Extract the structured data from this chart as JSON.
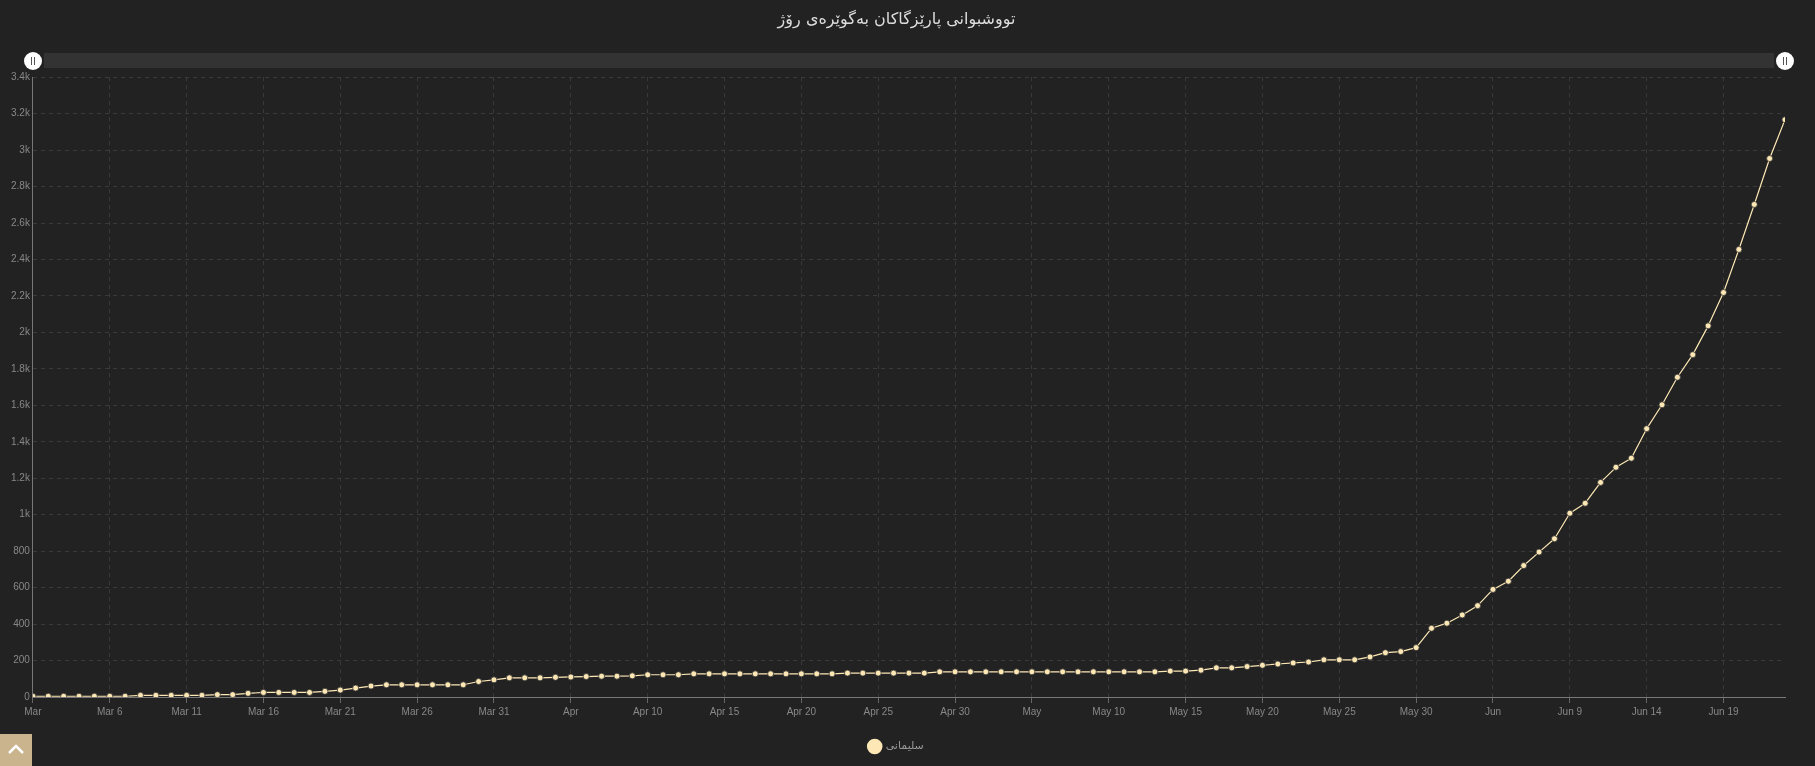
{
  "chart_data": {
    "type": "line",
    "title": "تووشبوانی پارێزگاکان بەگوێرەی رۆژ",
    "x": [
      "--03-01",
      "--03-02",
      "--03-03",
      "--03-04",
      "--03-05",
      "--03-06",
      "--03-07",
      "--03-08",
      "--03-09",
      "--03-10",
      "--03-11",
      "--03-12",
      "--03-13",
      "--03-14",
      "--03-15",
      "--03-16",
      "--03-17",
      "--03-18",
      "--03-19",
      "--03-20",
      "--03-21",
      "--03-22",
      "--03-23",
      "--03-24",
      "--03-25",
      "--03-26",
      "--03-27",
      "--03-28",
      "--03-29",
      "--03-30",
      "--03-31",
      "--04-01",
      "--04-02",
      "--04-03",
      "--04-04",
      "--04-05",
      "--04-06",
      "--04-07",
      "--04-08",
      "--04-09",
      "--04-10",
      "--04-11",
      "--04-12",
      "--04-13",
      "--04-14",
      "--04-15",
      "--04-16",
      "--04-17",
      "--04-18",
      "--04-19",
      "--04-20",
      "--04-21",
      "--04-22",
      "--04-23",
      "--04-24",
      "--04-25",
      "--04-26",
      "--04-27",
      "--04-28",
      "--04-29",
      "--04-30",
      "--05-01",
      "--05-02",
      "--05-03",
      "--05-04",
      "--05-05",
      "--05-06",
      "--05-07",
      "--05-08",
      "--05-09",
      "--05-10",
      "--05-11",
      "--05-12",
      "--05-13",
      "--05-14",
      "--05-15",
      "--05-16",
      "--05-17",
      "--05-18",
      "--05-19",
      "--05-20",
      "--05-21",
      "--05-22",
      "--05-23",
      "--05-24",
      "--05-25",
      "--05-26",
      "--05-27",
      "--05-28",
      "--05-29",
      "--05-30",
      "--05-31",
      "--06-01",
      "--06-02",
      "--06-03",
      "--06-04",
      "--06-05",
      "--06-06",
      "--06-07",
      "--06-08",
      "--06-09",
      "--06-10",
      "--06-11",
      "--06-12",
      "--06-13",
      "--06-14",
      "--06-15",
      "--06-16",
      "--06-17",
      "--06-18",
      "--06-19",
      "--06-20",
      "--06-21",
      "--06-22",
      "--06-23"
    ],
    "series": [
      {
        "name": "سلیمانی",
        "color": "#fde8b5",
        "values": [
          4,
          4,
          4,
          4,
          4,
          4,
          4,
          9,
          9,
          9,
          9,
          9,
          13,
          13,
          20,
          25,
          25,
          25,
          25,
          31,
          38,
          49,
          60,
          67,
          67,
          67,
          67,
          67,
          67,
          85,
          94,
          105,
          105,
          105,
          108,
          110,
          112,
          114,
          114,
          116,
          122,
          122,
          122,
          127,
          127,
          127,
          127,
          127,
          127,
          127,
          127,
          127,
          127,
          131,
          131,
          131,
          131,
          131,
          131,
          138,
          138,
          138,
          138,
          138,
          138,
          138,
          138,
          138,
          138,
          138,
          138,
          138,
          138,
          138,
          142,
          142,
          147,
          160,
          160,
          167,
          174,
          181,
          187,
          192,
          204,
          204,
          204,
          220,
          243,
          249,
          271,
          377,
          405,
          450,
          501,
          590,
          635,
          721,
          795,
          868,
          1008,
          1063,
          1177,
          1260,
          1310,
          1472,
          1603,
          1754,
          1878,
          2036,
          2219,
          2455,
          2702,
          2954,
          3167
        ]
      }
    ],
    "xlim": [
      "--03-01",
      "--06-23"
    ],
    "xticks": [
      {
        "value": "--03-01",
        "label": "Mar"
      },
      {
        "value": "--03-06",
        "label": "Mar 6"
      },
      {
        "value": "--03-11",
        "label": "Mar 11"
      },
      {
        "value": "--03-16",
        "label": "Mar 16"
      },
      {
        "value": "--03-21",
        "label": "Mar 21"
      },
      {
        "value": "--03-26",
        "label": "Mar 26"
      },
      {
        "value": "--03-31",
        "label": "Mar 31"
      },
      {
        "value": "--04-05",
        "label": "Apr"
      },
      {
        "value": "--04-10",
        "label": "Apr 10"
      },
      {
        "value": "--04-15",
        "label": "Apr 15"
      },
      {
        "value": "--04-20",
        "label": "Apr 20"
      },
      {
        "value": "--04-25",
        "label": "Apr 25"
      },
      {
        "value": "--04-30",
        "label": "Apr 30"
      },
      {
        "value": "--05-05",
        "label": "May"
      },
      {
        "value": "--05-10",
        "label": "May 10"
      },
      {
        "value": "--05-15",
        "label": "May 15"
      },
      {
        "value": "--05-20",
        "label": "May 20"
      },
      {
        "value": "--05-25",
        "label": "May 25"
      },
      {
        "value": "--05-30",
        "label": "May 30"
      },
      {
        "value": "--06-04",
        "label": "Jun"
      },
      {
        "value": "--06-09",
        "label": "Jun 9"
      },
      {
        "value": "--06-14",
        "label": "Jun 14"
      },
      {
        "value": "--06-19",
        "label": "Jun 19"
      }
    ],
    "ylim": [
      0,
      3400
    ],
    "yticks": [
      0,
      200,
      400,
      600,
      800,
      {
        "value": 1000,
        "label": "1k"
      },
      {
        "value": 1200,
        "label": "1.2k"
      },
      {
        "value": 1400,
        "label": "1.4k"
      },
      {
        "value": 1600,
        "label": "1.6k"
      },
      {
        "value": 1800,
        "label": "1.8k"
      },
      {
        "value": 2000,
        "label": "2k"
      },
      {
        "value": 2200,
        "label": "2.2k"
      },
      {
        "value": 2400,
        "label": "2.4k"
      },
      {
        "value": 2600,
        "label": "2.6k"
      },
      {
        "value": 2800,
        "label": "2.8k"
      },
      {
        "value": 3000,
        "label": "3k"
      },
      {
        "value": 3200,
        "label": "3.2k"
      },
      {
        "value": 3400,
        "label": "3.4k"
      }
    ],
    "grid": true,
    "legend": "bottom",
    "marker": "circle",
    "line_style": "solid"
  }
}
